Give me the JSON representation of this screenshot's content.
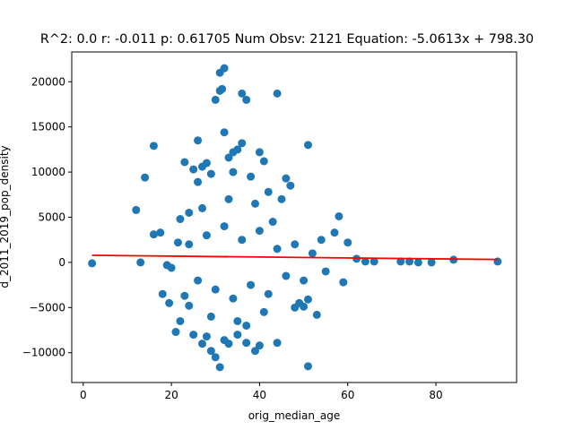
{
  "chart_data": {
    "type": "scatter",
    "title": "R^2: 0.0 r: -0.011 p: 0.61705 Num Obsv: 2121 Equation: -5.0613x + 798.30",
    "xlabel": "orig_median_age",
    "ylabel": "d_2011_2019_pop_density",
    "xlim": [
      -2.6,
      98.3
    ],
    "ylim": [
      -13300,
      23300
    ],
    "xticks": [
      0,
      20,
      40,
      60,
      80
    ],
    "yticks": [
      -10000,
      -5000,
      0,
      5000,
      10000,
      15000,
      20000
    ],
    "grid": false,
    "colors": {
      "points": "#1f77b4",
      "fit_line": "#ff0000"
    },
    "fit": {
      "slope": -5.0613,
      "intercept": 798.3,
      "x_range": [
        2,
        94
      ]
    },
    "num_observations": 2121,
    "series": [
      {
        "values_note": "",
        "points": [
          [
            2,
            -100
          ],
          [
            12,
            5800
          ],
          [
            13,
            0
          ],
          [
            14,
            9400
          ],
          [
            16,
            12900
          ],
          [
            16,
            3100
          ],
          [
            17.5,
            3300
          ],
          [
            18,
            -3500
          ],
          [
            19,
            -300
          ],
          [
            19.5,
            -4500
          ],
          [
            20,
            -600
          ],
          [
            21,
            -7700
          ],
          [
            21.5,
            2200
          ],
          [
            22,
            4800
          ],
          [
            22,
            -6500
          ],
          [
            23,
            11100
          ],
          [
            23,
            -3700
          ],
          [
            24,
            5500
          ],
          [
            24,
            -4800
          ],
          [
            25,
            10300
          ],
          [
            25,
            -8000
          ],
          [
            26,
            8900
          ],
          [
            26,
            13500
          ],
          [
            27,
            10600
          ],
          [
            27,
            -9000
          ],
          [
            28,
            11000
          ],
          [
            28,
            -8200
          ],
          [
            29,
            9800
          ],
          [
            29,
            -9800
          ],
          [
            30,
            18000
          ],
          [
            30,
            -10500
          ],
          [
            31,
            19000
          ],
          [
            31,
            21000
          ],
          [
            31,
            -11600
          ],
          [
            31.5,
            19200
          ],
          [
            32,
            21500
          ],
          [
            32,
            14400
          ],
          [
            32,
            -8600
          ],
          [
            33,
            11600
          ],
          [
            33,
            -9000
          ],
          [
            34,
            12200
          ],
          [
            34,
            10000
          ],
          [
            35,
            12500
          ],
          [
            35,
            -8000
          ],
          [
            36,
            18700
          ],
          [
            36,
            13200
          ],
          [
            37,
            18000
          ],
          [
            37,
            -8900
          ],
          [
            38,
            9500
          ],
          [
            39,
            -9800
          ],
          [
            40,
            12200
          ],
          [
            40,
            -9200
          ],
          [
            41,
            11200
          ],
          [
            42,
            7800
          ],
          [
            44,
            18700
          ],
          [
            44,
            -8900
          ],
          [
            45,
            7000
          ],
          [
            46,
            9300
          ],
          [
            47,
            8500
          ],
          [
            48,
            -5000
          ],
          [
            49,
            -4500
          ],
          [
            50,
            -4900
          ],
          [
            51,
            13000
          ],
          [
            51,
            -11500
          ],
          [
            51,
            -4100
          ],
          [
            53,
            -5800
          ],
          [
            54,
            2500
          ],
          [
            57,
            3300
          ],
          [
            58,
            5100
          ],
          [
            59,
            -2200
          ],
          [
            60,
            2200
          ],
          [
            62,
            400
          ],
          [
            64,
            100
          ],
          [
            66,
            100
          ],
          [
            72,
            100
          ],
          [
            74,
            100
          ],
          [
            76,
            0
          ],
          [
            79,
            0
          ],
          [
            84,
            300
          ],
          [
            94,
            100
          ],
          [
            24,
            2000
          ],
          [
            26,
            -2000
          ],
          [
            28,
            3000
          ],
          [
            30,
            -3000
          ],
          [
            32,
            4000
          ],
          [
            34,
            -4000
          ],
          [
            36,
            2500
          ],
          [
            38,
            -2500
          ],
          [
            40,
            3500
          ],
          [
            42,
            -3500
          ],
          [
            44,
            1500
          ],
          [
            46,
            -1500
          ],
          [
            48,
            2000
          ],
          [
            50,
            -2000
          ],
          [
            52,
            1000
          ],
          [
            55,
            -1000
          ],
          [
            27,
            6000
          ],
          [
            33,
            7000
          ],
          [
            39,
            6500
          ],
          [
            29,
            -6000
          ],
          [
            35,
            -6500
          ],
          [
            41,
            -5500
          ],
          [
            43,
            4500
          ],
          [
            37,
            -7000
          ]
        ]
      }
    ]
  }
}
